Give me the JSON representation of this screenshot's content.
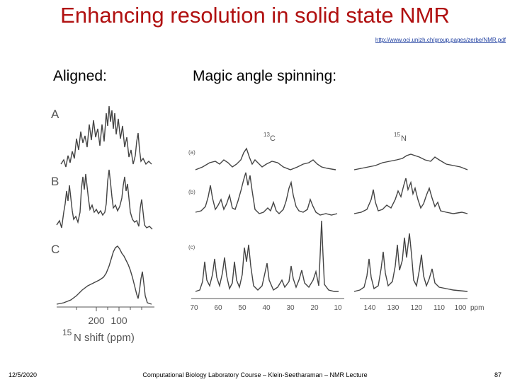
{
  "slide": {
    "title": "Enhancing resolution in solid state NMR",
    "url": "http://www.oci.unizh.ch/group.pages/zerbe/NMR.pdf",
    "heading_left": "Aligned:",
    "heading_right": "Magic angle spinning:"
  },
  "figure_left": {
    "panel_labels": [
      "A",
      "B",
      "C"
    ],
    "axis_ticks": [
      "200",
      "100"
    ],
    "axis_label_sup": "15",
    "axis_label": "N shift (ppm)"
  },
  "figure_right": {
    "nucleus_c": {
      "sup": "13",
      "symbol": "C"
    },
    "nucleus_n": {
      "sup": "15",
      "symbol": "N"
    },
    "row_labels": [
      "(a)",
      "(b)",
      "(c)"
    ],
    "c_axis_ticks": [
      "70",
      "60",
      "50",
      "40",
      "30",
      "20",
      "10"
    ],
    "n_axis_ticks": [
      "140",
      "130",
      "120",
      "110",
      "100"
    ],
    "n_axis_unit": "ppm"
  },
  "footer": {
    "date": "12/5/2020",
    "course": "Computational Biology Laboratory Course – Klein-Seetharaman – NMR Lecture",
    "page": "87"
  }
}
